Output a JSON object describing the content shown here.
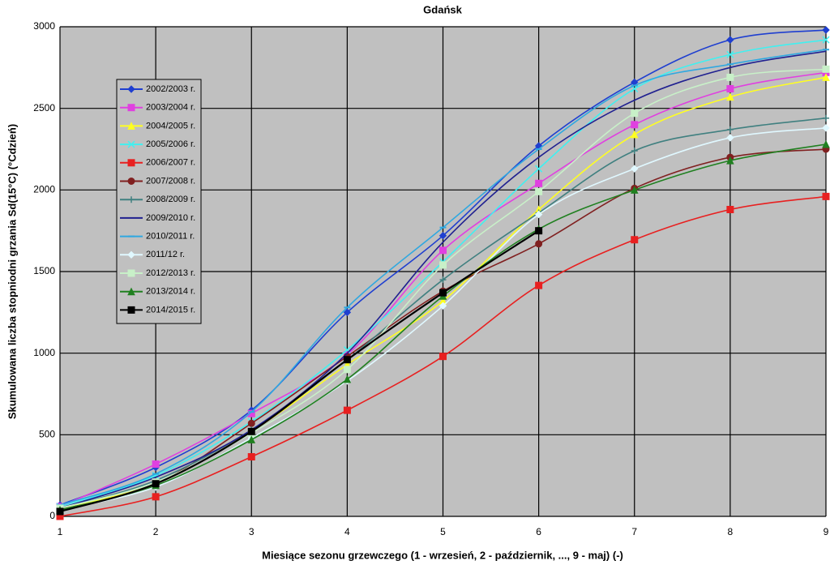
{
  "chart_data": {
    "type": "line",
    "title": "Gdańsk",
    "x_label": "Miesiące sezonu grzewczego (1 - wrzesień, 2 - październik, ..., 9 - maj) (-)",
    "y_label": "Skumulowana liczba stopniodni grzania Sd(15°C) (°Cdzień)",
    "x": [
      1,
      2,
      3,
      4,
      5,
      6,
      7,
      8,
      9
    ],
    "xlim": [
      1,
      9
    ],
    "xticks": [
      1,
      2,
      3,
      4,
      5,
      6,
      7,
      8,
      9
    ],
    "ylim": [
      0,
      3000
    ],
    "yticks": [
      0,
      500,
      1000,
      1500,
      2000,
      2500,
      3000
    ],
    "grid": true,
    "legend": "upper left",
    "series": [
      {
        "name": "2002/2003 r.",
        "color": "#1f3fd0",
        "marker": "diamond",
        "values": [
          70,
          300,
          650,
          1250,
          1720,
          2270,
          2660,
          2920,
          2980
        ]
      },
      {
        "name": "2003/2004 r.",
        "color": "#e040e0",
        "marker": "square",
        "values": [
          60,
          320,
          630,
          990,
          1630,
          2040,
          2400,
          2620,
          2720
        ]
      },
      {
        "name": "2004/2005 r.",
        "color": "#ffff20",
        "marker": "triangle",
        "values": [
          50,
          200,
          520,
          930,
          1320,
          1880,
          2340,
          2570,
          2690
        ]
      },
      {
        "name": "2005/2006 r.",
        "color": "#40f0f0",
        "marker": "x",
        "values": [
          60,
          250,
          580,
          1020,
          1560,
          2130,
          2620,
          2830,
          2920
        ]
      },
      {
        "name": "2006/2007 r.",
        "color": "#e82020",
        "marker": "square",
        "values": [
          0,
          120,
          365,
          650,
          980,
          1415,
          1695,
          1880,
          1960
        ]
      },
      {
        "name": "2007/2008 r.",
        "color": "#802020",
        "marker": "circle",
        "values": [
          40,
          200,
          570,
          980,
          1380,
          1670,
          2010,
          2200,
          2250
        ]
      },
      {
        "name": "2008/2009 r.",
        "color": "#408080",
        "marker": "plus",
        "values": [
          50,
          220,
          530,
          960,
          1450,
          1860,
          2240,
          2370,
          2440
        ]
      },
      {
        "name": "2009/2010 r.",
        "color": "#202090",
        "marker": "none",
        "values": [
          50,
          240,
          530,
          1000,
          1680,
          2200,
          2550,
          2750,
          2850
        ]
      },
      {
        "name": "2010/2011 r.",
        "color": "#30a8e0",
        "marker": "dash",
        "values": [
          70,
          260,
          640,
          1280,
          1770,
          2250,
          2640,
          2770,
          2860
        ]
      },
      {
        "name": "2011/12 r.",
        "color": "#e0f8ff",
        "marker": "diamond",
        "values": [
          40,
          180,
          480,
          830,
          1290,
          1850,
          2130,
          2320,
          2380
        ]
      },
      {
        "name": "2012/2013 r.",
        "color": "#c8f0c8",
        "marker": "square",
        "values": [
          50,
          210,
          510,
          900,
          1540,
          1990,
          2470,
          2690,
          2740
        ]
      },
      {
        "name": "2013/2014 r.",
        "color": "#208020",
        "marker": "triangle",
        "values": [
          40,
          190,
          470,
          840,
          1350,
          1760,
          2000,
          2180,
          2280
        ]
      },
      {
        "name": "2014/2015 r.",
        "color": "#000000",
        "marker": "square",
        "values": [
          30,
          200,
          520,
          960,
          1370,
          1750,
          null,
          null,
          null
        ]
      }
    ]
  }
}
